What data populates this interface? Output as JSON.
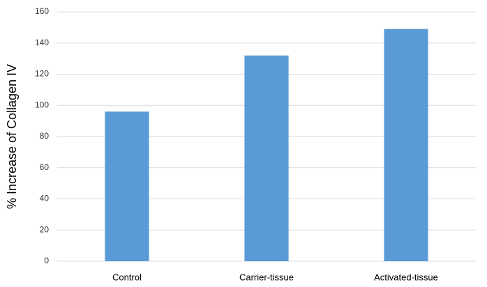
{
  "chart_data": {
    "type": "bar",
    "y_label": "% Increase of Collagen IV",
    "categories": [
      "Control",
      "Carrier-tissue",
      "Activated-tissue"
    ],
    "values": [
      96,
      132,
      149
    ],
    "color": "#5b9bd5",
    "ylim": [
      0,
      160
    ],
    "yticks": [
      0,
      20,
      40,
      60,
      80,
      100,
      120,
      140,
      160
    ],
    "grid": true
  }
}
